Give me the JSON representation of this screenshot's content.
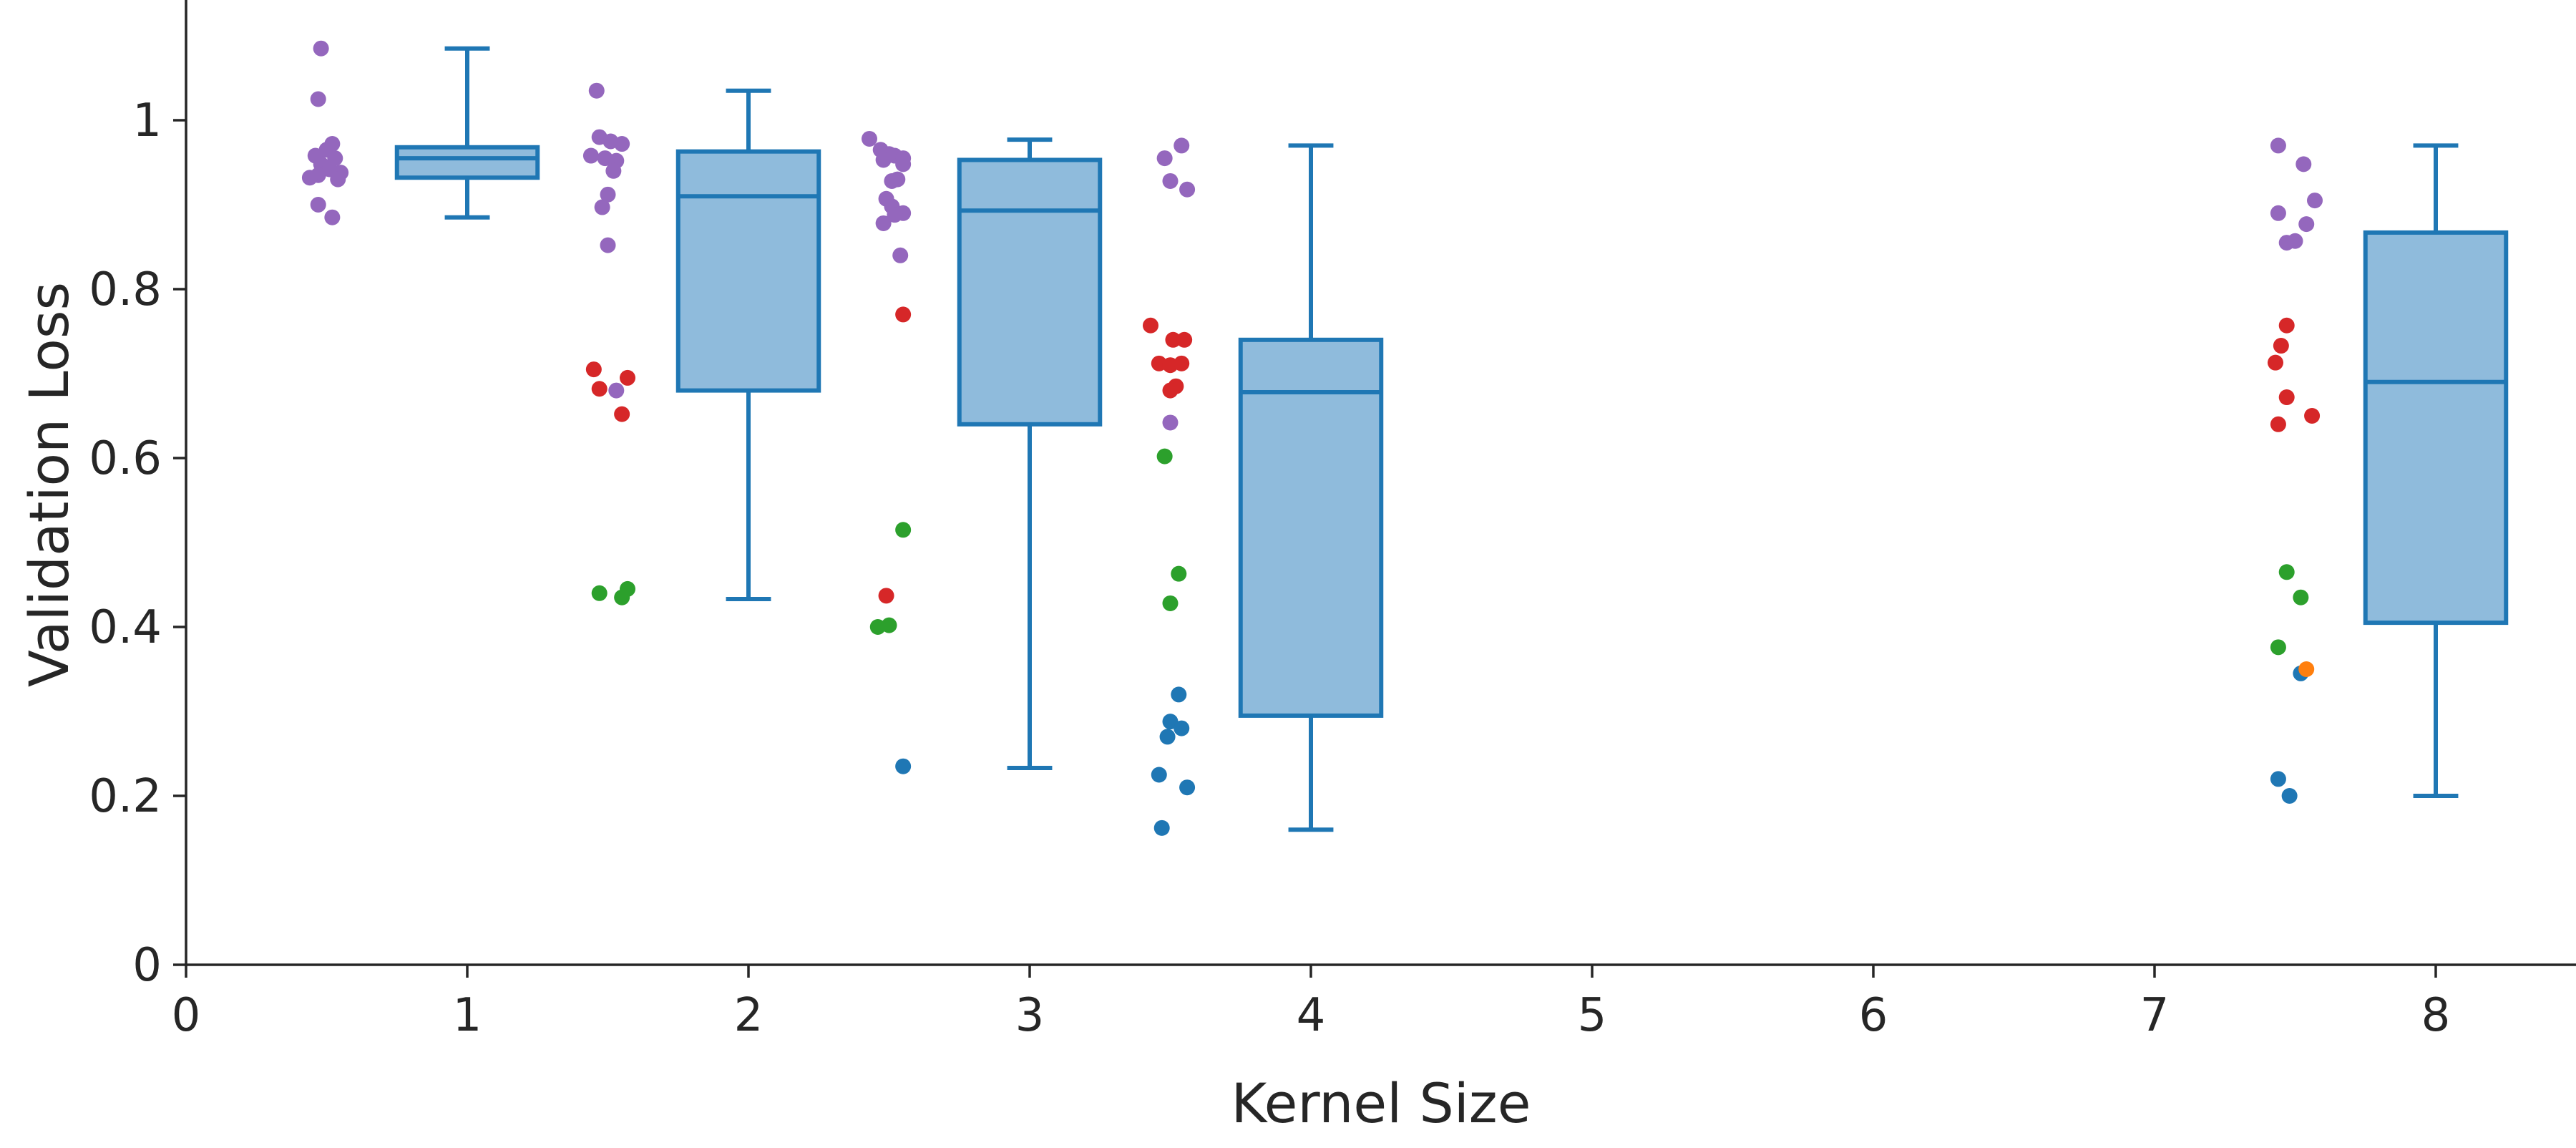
{
  "chart_data": {
    "type": "box",
    "xlabel": "Kernel Size",
    "ylabel": "Validation Loss",
    "xlim": [
      0,
      8.5
    ],
    "ylim": [
      0,
      1.15
    ],
    "xticks": [
      0,
      1,
      2,
      3,
      4,
      5,
      6,
      7,
      8
    ],
    "yticks": [
      0,
      0.2,
      0.4,
      0.6,
      0.8,
      1
    ],
    "xtick_labels": [
      "0",
      "1",
      "2",
      "3",
      "4",
      "5",
      "6",
      "7",
      "8"
    ],
    "ytick_labels": [
      "0",
      "0.2",
      "0.4",
      "0.6",
      "0.8",
      "1"
    ],
    "box_color": "#1f77b4",
    "box_fill": "#8fbbdc",
    "boxes": [
      {
        "x": 1,
        "whisker_low": 0.885,
        "q1": 0.932,
        "median": 0.955,
        "q3": 0.968,
        "whisker_high": 1.085
      },
      {
        "x": 2,
        "whisker_low": 0.433,
        "q1": 0.68,
        "median": 0.91,
        "q3": 0.963,
        "whisker_high": 1.035
      },
      {
        "x": 3,
        "whisker_low": 0.233,
        "q1": 0.64,
        "median": 0.893,
        "q3": 0.953,
        "whisker_high": 0.977
      },
      {
        "x": 4,
        "whisker_low": 0.16,
        "q1": 0.295,
        "median": 0.678,
        "q3": 0.74,
        "whisker_high": 0.97
      },
      {
        "x": 8,
        "whisker_low": 0.2,
        "q1": 0.405,
        "median": 0.69,
        "q3": 0.867,
        "whisker_high": 0.97
      }
    ],
    "point_groups": [
      {
        "color": "#9467bd",
        "points": [
          [
            0.48,
            1.085
          ],
          [
            0.47,
            1.025
          ],
          [
            0.52,
            0.972
          ],
          [
            0.5,
            0.965
          ],
          [
            0.46,
            0.958
          ],
          [
            0.53,
            0.955
          ],
          [
            0.48,
            0.948
          ],
          [
            0.51,
            0.942
          ],
          [
            0.55,
            0.938
          ],
          [
            0.47,
            0.935
          ],
          [
            0.44,
            0.932
          ],
          [
            0.54,
            0.93
          ],
          [
            0.47,
            0.9
          ],
          [
            0.52,
            0.885
          ],
          [
            1.46,
            1.035
          ],
          [
            1.47,
            0.98
          ],
          [
            1.51,
            0.975
          ],
          [
            1.55,
            0.972
          ],
          [
            1.44,
            0.958
          ],
          [
            1.49,
            0.955
          ],
          [
            1.53,
            0.952
          ],
          [
            1.52,
            0.94
          ],
          [
            1.5,
            0.912
          ],
          [
            1.48,
            0.897
          ],
          [
            1.5,
            0.852
          ],
          [
            1.53,
            0.68
          ],
          [
            2.43,
            0.978
          ],
          [
            2.47,
            0.965
          ],
          [
            2.5,
            0.96
          ],
          [
            2.52,
            0.958
          ],
          [
            2.55,
            0.955
          ],
          [
            2.48,
            0.953
          ],
          [
            2.55,
            0.948
          ],
          [
            2.53,
            0.93
          ],
          [
            2.51,
            0.928
          ],
          [
            2.49,
            0.907
          ],
          [
            2.51,
            0.898
          ],
          [
            2.55,
            0.89
          ],
          [
            2.52,
            0.888
          ],
          [
            2.48,
            0.878
          ],
          [
            2.54,
            0.84
          ],
          [
            3.48,
            0.955
          ],
          [
            3.54,
            0.97
          ],
          [
            3.5,
            0.928
          ],
          [
            3.56,
            0.918
          ],
          [
            3.5,
            0.642
          ],
          [
            7.44,
            0.97
          ],
          [
            7.53,
            0.948
          ],
          [
            7.57,
            0.905
          ],
          [
            7.44,
            0.89
          ],
          [
            7.54,
            0.877
          ],
          [
            7.47,
            0.855
          ],
          [
            7.5,
            0.857
          ]
        ]
      },
      {
        "color": "#d62728",
        "points": [
          [
            1.45,
            0.705
          ],
          [
            1.47,
            0.682
          ],
          [
            1.57,
            0.695
          ],
          [
            1.55,
            0.652
          ],
          [
            2.55,
            0.77
          ],
          [
            2.49,
            0.437
          ],
          [
            3.43,
            0.757
          ],
          [
            3.51,
            0.74
          ],
          [
            3.55,
            0.74
          ],
          [
            3.46,
            0.712
          ],
          [
            3.5,
            0.71
          ],
          [
            3.54,
            0.712
          ],
          [
            3.52,
            0.685
          ],
          [
            3.5,
            0.68
          ],
          [
            7.47,
            0.757
          ],
          [
            7.45,
            0.733
          ],
          [
            7.43,
            0.713
          ],
          [
            7.47,
            0.672
          ],
          [
            7.56,
            0.65
          ],
          [
            7.44,
            0.64
          ]
        ]
      },
      {
        "color": "#2ca02c",
        "points": [
          [
            1.47,
            0.44
          ],
          [
            1.57,
            0.445
          ],
          [
            1.55,
            0.435
          ],
          [
            2.55,
            0.515
          ],
          [
            2.46,
            0.4
          ],
          [
            2.5,
            0.402
          ],
          [
            3.48,
            0.602
          ],
          [
            3.53,
            0.463
          ],
          [
            3.5,
            0.428
          ],
          [
            7.47,
            0.465
          ],
          [
            7.52,
            0.435
          ],
          [
            7.44,
            0.376
          ]
        ]
      },
      {
        "color": "#1f77b4",
        "points": [
          [
            2.55,
            0.235
          ],
          [
            3.53,
            0.32
          ],
          [
            3.5,
            0.288
          ],
          [
            3.54,
            0.28
          ],
          [
            3.49,
            0.27
          ],
          [
            3.46,
            0.225
          ],
          [
            3.56,
            0.21
          ],
          [
            3.47,
            0.162
          ],
          [
            7.52,
            0.345
          ],
          [
            7.44,
            0.22
          ],
          [
            7.48,
            0.2
          ]
        ]
      },
      {
        "color": "#ff7f0e",
        "points": [
          [
            7.54,
            0.35
          ]
        ]
      }
    ]
  }
}
